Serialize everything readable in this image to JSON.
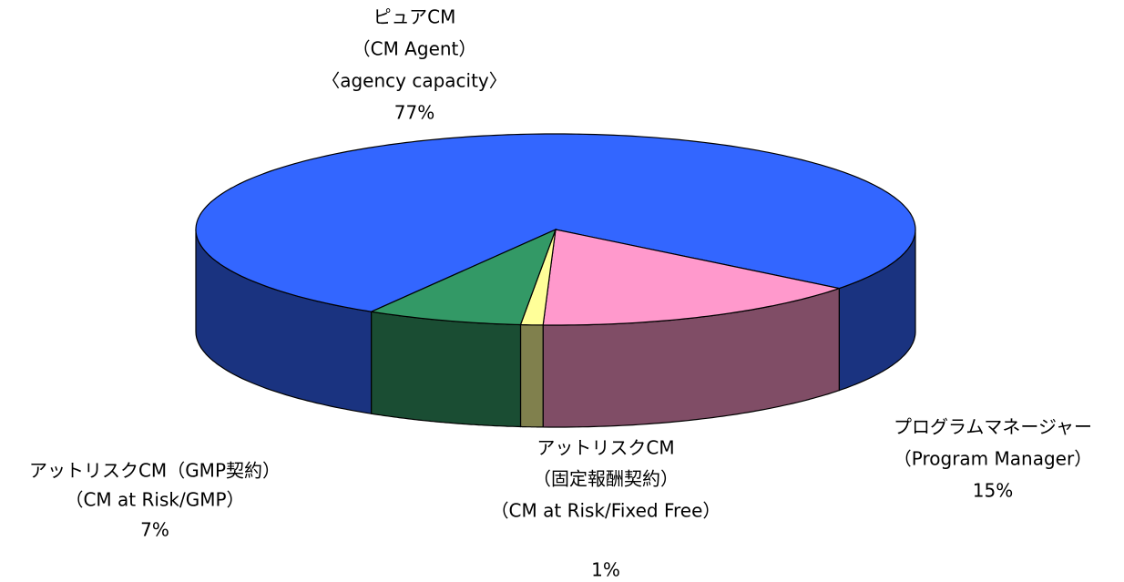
{
  "chart_data": {
    "type": "pie",
    "categories": [
      [
        "ピュアCM",
        "（CM Agent）",
        "〈agency capacity〉"
      ],
      [
        "プログラムマネージャー",
        "（Program Manager）"
      ],
      [
        "アットリスクCM",
        "（固定報酬契約）",
        "（CM at Risk/Fixed Free）"
      ],
      [
        "アットリスクCM（GMP契約）",
        "（CM at Risk/GMP）"
      ]
    ],
    "values": [
      77,
      15,
      1,
      7
    ],
    "value_labels": [
      "77%",
      "15%",
      "1%",
      "7%"
    ],
    "colors": [
      "#3366ff",
      "#ff99cc",
      "#ffff99",
      "#339966"
    ]
  }
}
